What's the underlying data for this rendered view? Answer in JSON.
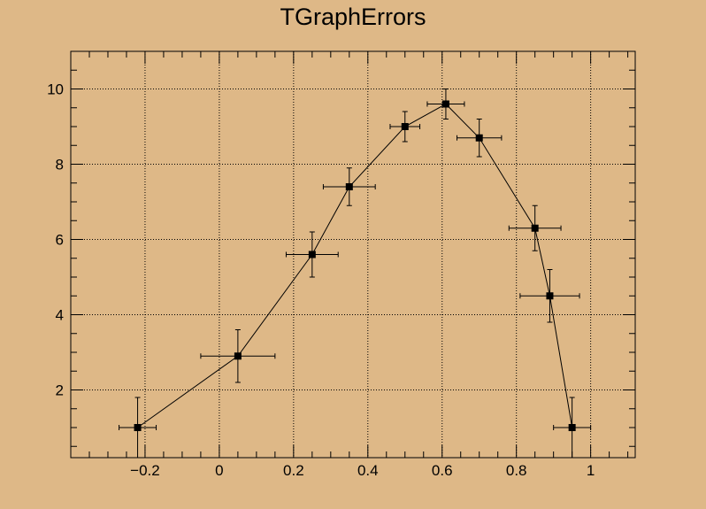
{
  "chart_data": {
    "type": "scatter",
    "title": "TGraphErrors",
    "xlabel": "",
    "ylabel": "",
    "xlim": [
      -0.4,
      1.12
    ],
    "ylim": [
      0.2,
      11.0
    ],
    "x_ticks": [
      -0.2,
      0,
      0.2,
      0.4,
      0.6,
      0.8,
      1
    ],
    "x_tick_labels": [
      "−0.2",
      "0",
      "0.2",
      "0.4",
      "0.6",
      "0.8",
      "1"
    ],
    "y_ticks": [
      2,
      4,
      6,
      8,
      10
    ],
    "y_tick_labels": [
      "2",
      "4",
      "6",
      "8",
      "10"
    ],
    "grid": true,
    "marker": "filled-square",
    "connected": true,
    "series": [
      {
        "x": [
          -0.22,
          0.05,
          0.25,
          0.35,
          0.5,
          0.61,
          0.7,
          0.85,
          0.89,
          0.95
        ],
        "y": [
          1.0,
          2.9,
          5.6,
          7.4,
          9.0,
          9.6,
          8.7,
          6.3,
          4.5,
          1.0
        ],
        "ex": [
          0.05,
          0.1,
          0.07,
          0.07,
          0.04,
          0.05,
          0.06,
          0.07,
          0.08,
          0.05
        ],
        "ey": [
          0.8,
          0.7,
          0.6,
          0.5,
          0.4,
          0.4,
          0.5,
          0.6,
          0.7,
          0.8
        ]
      }
    ]
  }
}
